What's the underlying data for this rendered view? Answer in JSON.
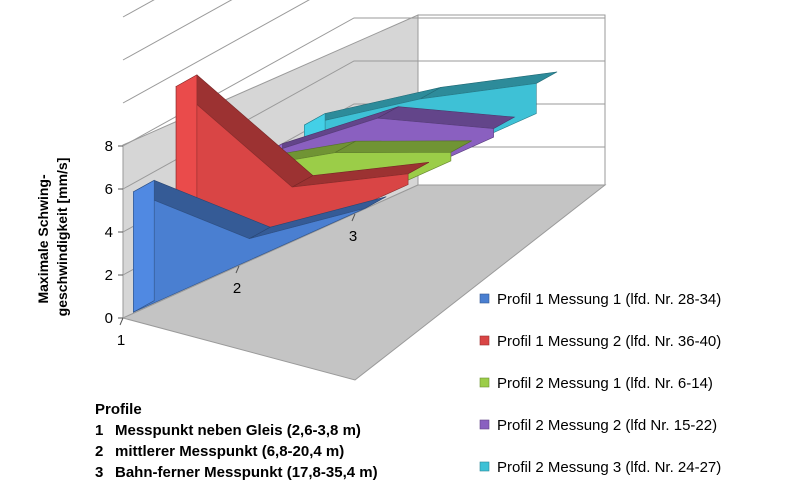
{
  "chart_data": {
    "type": "area",
    "variant": "3d",
    "categories": [
      "1",
      "2",
      "3"
    ],
    "ylabel_lines": [
      "Maximale Schwing-",
      "geschwindigkeit [mm/s]"
    ],
    "ylim": [
      0,
      8
    ],
    "y_ticks": [
      "0",
      "2",
      "4",
      "6",
      "8"
    ],
    "grid": true,
    "legend_position": "right",
    "series": [
      {
        "name": "Profil 1 Messung 1 (lfd. Nr. 28-34)",
        "values": [
          5.6,
          1.0,
          0.0
        ],
        "color": "#4a7fd1"
      },
      {
        "name": "Profil 1 Messung 2 (lfd. Nr. 36-40)",
        "values": [
          9.4,
          2.3,
          0.5
        ],
        "color": "#d94545"
      },
      {
        "name": "Profil 2 Messung 1 (lfd. Nr. 6-14)",
        "values": [
          4.3,
          2.8,
          0.4
        ],
        "color": "#9bcd48"
      },
      {
        "name": "Profil 2 Messung 2 (lfd Nr. 15-22)",
        "values": [
          4.0,
          3.3,
          0.4
        ],
        "color": "#8a60c0"
      },
      {
        "name": "Profil 2 Messung 3 (lfd. Nr. 24-27)",
        "values": [
          4.3,
          3.1,
          1.4
        ],
        "color": "#3ec1d6"
      }
    ],
    "profile_title": "Profile",
    "profile_notes": [
      {
        "num": "1",
        "text": "Messpunkt neben Gleis (2,6-3,8 m)"
      },
      {
        "num": "2",
        "text": "mittlerer Messpunkt (6,8-20,4 m)"
      },
      {
        "num": "3",
        "text": "Bahn-ferner Messpunkt (17,8-35,4 m)"
      }
    ]
  }
}
